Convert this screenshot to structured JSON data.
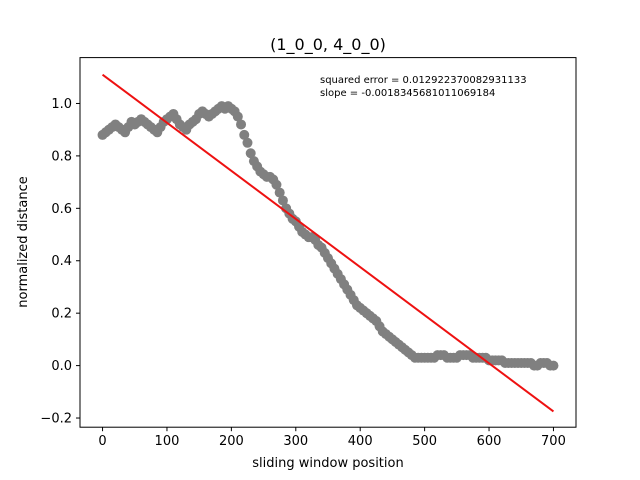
{
  "chart_data": {
    "type": "scatter",
    "title": "(1_0_0, 4_0_0)",
    "xlabel": "sliding window position",
    "ylabel": "normalized distance",
    "xlim": [
      -35,
      735
    ],
    "ylim": [
      -0.235,
      1.175
    ],
    "xticks": [
      0,
      100,
      200,
      300,
      400,
      500,
      600,
      700
    ],
    "yticks": [
      -0.2,
      0.0,
      0.2,
      0.4,
      0.6,
      0.8,
      1.0
    ],
    "ytick_labels": [
      "−0.2",
      "0.0",
      "0.2",
      "0.4",
      "0.6",
      "0.8",
      "1.0"
    ],
    "annotations": [
      "squared error = 0.012922370082931133",
      "slope = -0.0018345681011069184"
    ],
    "grid": false,
    "series": [
      {
        "kind": "scatter",
        "color": "#808080",
        "points": [
          [
            0,
            0.88
          ],
          [
            5,
            0.89
          ],
          [
            10,
            0.9
          ],
          [
            15,
            0.91
          ],
          [
            20,
            0.92
          ],
          [
            25,
            0.91
          ],
          [
            30,
            0.9
          ],
          [
            35,
            0.89
          ],
          [
            40,
            0.91
          ],
          [
            45,
            0.93
          ],
          [
            50,
            0.92
          ],
          [
            55,
            0.93
          ],
          [
            60,
            0.94
          ],
          [
            65,
            0.93
          ],
          [
            70,
            0.92
          ],
          [
            75,
            0.91
          ],
          [
            80,
            0.9
          ],
          [
            85,
            0.89
          ],
          [
            90,
            0.91
          ],
          [
            95,
            0.93
          ],
          [
            100,
            0.94
          ],
          [
            105,
            0.95
          ],
          [
            110,
            0.96
          ],
          [
            115,
            0.94
          ],
          [
            120,
            0.92
          ],
          [
            125,
            0.91
          ],
          [
            130,
            0.9
          ],
          [
            135,
            0.92
          ],
          [
            140,
            0.93
          ],
          [
            145,
            0.94
          ],
          [
            150,
            0.96
          ],
          [
            155,
            0.97
          ],
          [
            160,
            0.96
          ],
          [
            165,
            0.95
          ],
          [
            170,
            0.96
          ],
          [
            175,
            0.97
          ],
          [
            180,
            0.98
          ],
          [
            185,
            0.99
          ],
          [
            190,
            0.98
          ],
          [
            195,
            0.99
          ],
          [
            200,
            0.98
          ],
          [
            205,
            0.97
          ],
          [
            210,
            0.95
          ],
          [
            215,
            0.92
          ],
          [
            220,
            0.88
          ],
          [
            225,
            0.85
          ],
          [
            230,
            0.81
          ],
          [
            235,
            0.78
          ],
          [
            240,
            0.76
          ],
          [
            245,
            0.74
          ],
          [
            250,
            0.73
          ],
          [
            255,
            0.72
          ],
          [
            260,
            0.72
          ],
          [
            265,
            0.71
          ],
          [
            270,
            0.69
          ],
          [
            275,
            0.66
          ],
          [
            280,
            0.63
          ],
          [
            285,
            0.6
          ],
          [
            290,
            0.58
          ],
          [
            295,
            0.56
          ],
          [
            300,
            0.55
          ],
          [
            305,
            0.53
          ],
          [
            310,
            0.51
          ],
          [
            315,
            0.5
          ],
          [
            320,
            0.49
          ],
          [
            325,
            0.49
          ],
          [
            330,
            0.48
          ],
          [
            335,
            0.46
          ],
          [
            340,
            0.45
          ],
          [
            345,
            0.43
          ],
          [
            350,
            0.41
          ],
          [
            355,
            0.39
          ],
          [
            360,
            0.37
          ],
          [
            365,
            0.35
          ],
          [
            370,
            0.33
          ],
          [
            375,
            0.31
          ],
          [
            380,
            0.29
          ],
          [
            385,
            0.27
          ],
          [
            390,
            0.25
          ],
          [
            395,
            0.23
          ],
          [
            400,
            0.22
          ],
          [
            405,
            0.21
          ],
          [
            410,
            0.2
          ],
          [
            415,
            0.19
          ],
          [
            420,
            0.18
          ],
          [
            425,
            0.17
          ],
          [
            430,
            0.15
          ],
          [
            435,
            0.13
          ],
          [
            440,
            0.12
          ],
          [
            445,
            0.11
          ],
          [
            450,
            0.1
          ],
          [
            455,
            0.09
          ],
          [
            460,
            0.08
          ],
          [
            465,
            0.07
          ],
          [
            470,
            0.06
          ],
          [
            475,
            0.05
          ],
          [
            480,
            0.04
          ],
          [
            485,
            0.03
          ],
          [
            490,
            0.03
          ],
          [
            495,
            0.03
          ],
          [
            500,
            0.03
          ],
          [
            505,
            0.03
          ],
          [
            510,
            0.03
          ],
          [
            515,
            0.03
          ],
          [
            520,
            0.04
          ],
          [
            525,
            0.04
          ],
          [
            530,
            0.04
          ],
          [
            535,
            0.03
          ],
          [
            540,
            0.03
          ],
          [
            545,
            0.03
          ],
          [
            550,
            0.03
          ],
          [
            555,
            0.04
          ],
          [
            560,
            0.04
          ],
          [
            565,
            0.04
          ],
          [
            570,
            0.04
          ],
          [
            575,
            0.03
          ],
          [
            580,
            0.03
          ],
          [
            585,
            0.03
          ],
          [
            590,
            0.03
          ],
          [
            595,
            0.03
          ],
          [
            600,
            0.02
          ],
          [
            605,
            0.02
          ],
          [
            610,
            0.02
          ],
          [
            615,
            0.02
          ],
          [
            620,
            0.02
          ],
          [
            625,
            0.01
          ],
          [
            630,
            0.01
          ],
          [
            635,
            0.01
          ],
          [
            640,
            0.01
          ],
          [
            645,
            0.01
          ],
          [
            650,
            0.01
          ],
          [
            655,
            0.01
          ],
          [
            660,
            0.01
          ],
          [
            665,
            0.01
          ],
          [
            670,
            0.0
          ],
          [
            675,
            0.0
          ],
          [
            680,
            0.01
          ],
          [
            685,
            0.01
          ],
          [
            690,
            0.01
          ],
          [
            695,
            0.0
          ],
          [
            700,
            0.0
          ]
        ]
      },
      {
        "kind": "line",
        "color": "#ee1111",
        "points": [
          [
            0,
            1.11
          ],
          [
            700,
            -0.175
          ]
        ]
      }
    ]
  }
}
